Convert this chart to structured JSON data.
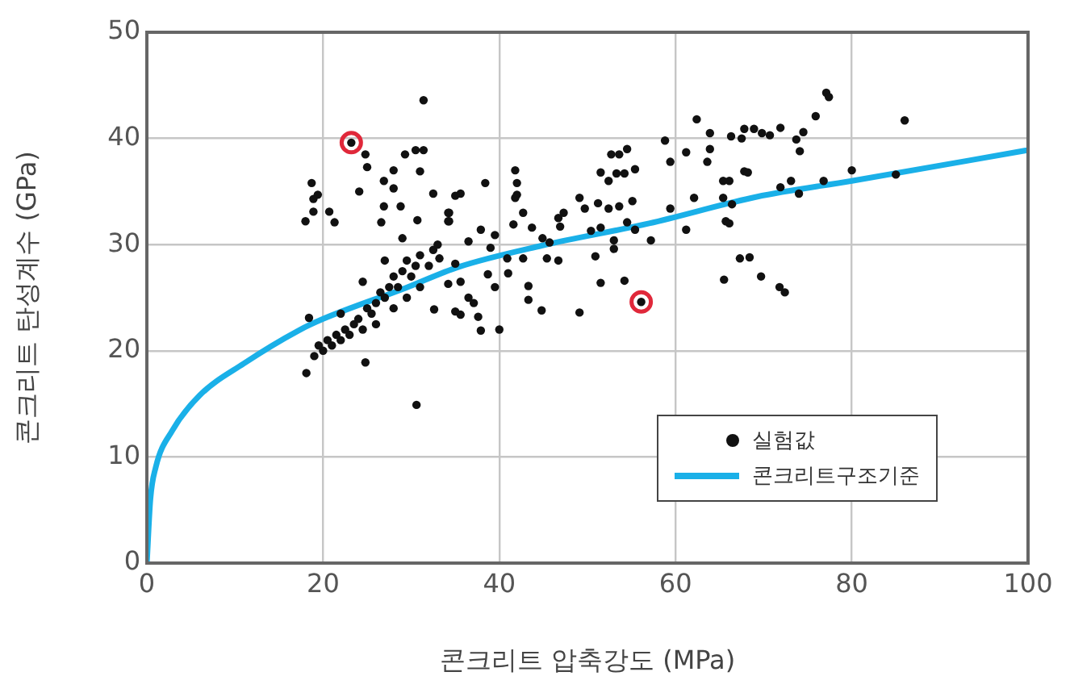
{
  "chart_data": {
    "type": "scatter",
    "xlabel": "콘크리트 압축강도 (MPa)",
    "ylabel": "콘크리트 탄성계수 (GPa)",
    "xlim": [
      0,
      100
    ],
    "xticks": [
      0,
      20,
      40,
      60,
      80,
      100
    ],
    "ylim": [
      0,
      50
    ],
    "yticks": [
      0,
      10,
      20,
      30,
      40,
      50
    ],
    "grid": true,
    "legend": "bottom right",
    "series": [
      {
        "name": "실험값",
        "type": "scatter",
        "marker": "circle",
        "color": "#111111",
        "x": [
          31.4,
          23.2,
          24.8,
          25.0,
          29.3,
          30.5,
          31.4,
          31.0,
          28.0,
          26.9,
          28.0,
          24.1,
          18.7,
          19.4,
          18.9,
          18.9,
          18.0,
          20.7,
          21.3,
          26.9,
          26.6,
          28.8,
          30.7,
          32.5,
          34.3,
          34.3,
          29.0,
          18.4,
          18.1,
          24.8,
          30.6,
          19.0,
          19.5,
          20.0,
          20.5,
          21.0,
          21.5,
          22.0,
          22.5,
          23.0,
          23.5,
          24.0,
          24.5,
          25.0,
          25.5,
          26.0,
          26.5,
          27.0,
          27.5,
          28.0,
          28.5,
          29.0,
          29.5,
          30.0,
          30.5,
          31.0,
          32.0,
          32.5,
          33.0,
          26.0,
          28.0,
          29.5,
          31.0,
          22.0,
          24.5,
          27.0,
          41.8,
          42.0,
          42.0,
          38.4,
          35.6,
          35.0,
          34.2,
          34.2,
          41.8,
          42.7,
          47.3,
          46.7,
          49.1,
          49.7,
          51.2,
          52.4,
          53.6,
          55.1,
          52.7,
          53.6,
          54.5,
          51.5,
          52.4,
          53.3,
          54.2,
          55.4,
          58.8,
          59.4,
          61.2,
          62.4,
          63.9,
          63.9,
          63.6,
          62.1,
          59.4,
          61.2,
          65.4,
          65.4,
          65.7,
          66.3,
          67.8,
          67.8,
          54.5,
          55.4,
          57.2,
          53.0,
          53.0,
          50.9,
          51.5,
          54.2,
          56.1,
          49.1,
          44.8,
          43.3,
          43.3,
          40.0,
          37.9,
          37.6,
          35.6,
          35.0,
          36.5,
          37.1,
          39.5,
          41.0,
          34.2,
          35.6,
          32.6,
          45.4,
          46.7,
          45.7,
          46.9,
          37.9,
          39.5,
          41.6,
          43.7,
          44.9,
          36.5,
          39.0,
          40.9,
          42.7,
          33.2,
          35.0,
          38.7,
          50.4,
          51.5,
          65.5,
          67.3,
          77.1,
          77.4,
          75.9,
          74.5,
          73.7,
          74.1,
          71.9,
          70.7,
          69.8,
          68.9,
          67.5,
          68.2,
          66.1,
          66.4,
          66.1,
          71.9,
          73.1,
          74.0,
          76.8,
          80.0,
          85.0,
          86.0,
          68.4,
          69.7,
          71.8,
          72.4
        ],
        "values": [
          43.6,
          39.6,
          38.5,
          37.3,
          38.5,
          38.9,
          38.9,
          36.9,
          37.0,
          36.0,
          35.3,
          35.0,
          35.8,
          34.7,
          34.3,
          33.1,
          32.2,
          33.1,
          32.1,
          33.6,
          32.1,
          33.6,
          32.3,
          34.8,
          33.0,
          32.2,
          30.6,
          23.1,
          17.9,
          18.9,
          14.9,
          19.5,
          20.5,
          20.0,
          21.0,
          20.5,
          21.5,
          21.0,
          22.0,
          21.5,
          22.5,
          23.0,
          22.0,
          24.0,
          23.5,
          24.5,
          25.5,
          25.0,
          26.0,
          27.0,
          26.0,
          27.5,
          28.5,
          27.0,
          28.0,
          29.0,
          28.0,
          29.5,
          30.0,
          22.5,
          24.0,
          25.0,
          26.0,
          23.5,
          26.5,
          28.5,
          37.0,
          35.8,
          34.7,
          35.8,
          34.8,
          34.6,
          33.0,
          32.2,
          34.4,
          33.0,
          33.0,
          32.5,
          34.4,
          33.4,
          33.9,
          33.4,
          33.6,
          34.1,
          38.5,
          38.5,
          39.0,
          36.8,
          36.0,
          36.7,
          36.7,
          37.1,
          39.8,
          37.8,
          38.7,
          41.8,
          40.5,
          39.0,
          37.8,
          34.4,
          33.4,
          31.4,
          36.0,
          34.4,
          32.2,
          40.2,
          40.9,
          36.9,
          32.1,
          31.4,
          30.4,
          30.4,
          29.6,
          28.9,
          26.4,
          26.6,
          24.6,
          23.6,
          23.8,
          24.8,
          26.1,
          22.0,
          21.9,
          23.2,
          23.4,
          23.7,
          25.0,
          24.5,
          26.0,
          27.3,
          26.3,
          26.5,
          23.9,
          28.7,
          28.5,
          30.2,
          31.7,
          31.4,
          30.9,
          31.9,
          31.6,
          30.6,
          30.3,
          29.7,
          28.7,
          28.7,
          28.7,
          28.2,
          27.2,
          31.3,
          31.6,
          26.7,
          28.7,
          44.3,
          43.9,
          42.1,
          40.6,
          39.9,
          38.8,
          41.0,
          40.3,
          40.5,
          40.9,
          40.0,
          36.8,
          36.0,
          33.8,
          32.0,
          35.4,
          36.0,
          34.8,
          36.0,
          37.0,
          36.6,
          41.7,
          28.8,
          27.0,
          26.0,
          25.5
        ]
      },
      {
        "name": "콘크리트구조기준",
        "type": "line",
        "marker": "none",
        "color": "#1ab0e8",
        "x": [
          0,
          0.4,
          1,
          2.9,
          6,
          11,
          17.2,
          20,
          29.3,
          35.4,
          44.8,
          57,
          69.2,
          80,
          100
        ],
        "values": [
          0,
          6,
          9,
          12.5,
          15.8,
          18.8,
          21.9,
          23,
          25.9,
          27.9,
          29.9,
          32,
          34.5,
          36,
          38.9
        ]
      },
      {
        "type": "scatter",
        "marker": "circle",
        "color": "#e0283a",
        "x": [
          23.2,
          56.1
        ],
        "values": [
          39.6,
          24.6
        ]
      }
    ]
  }
}
